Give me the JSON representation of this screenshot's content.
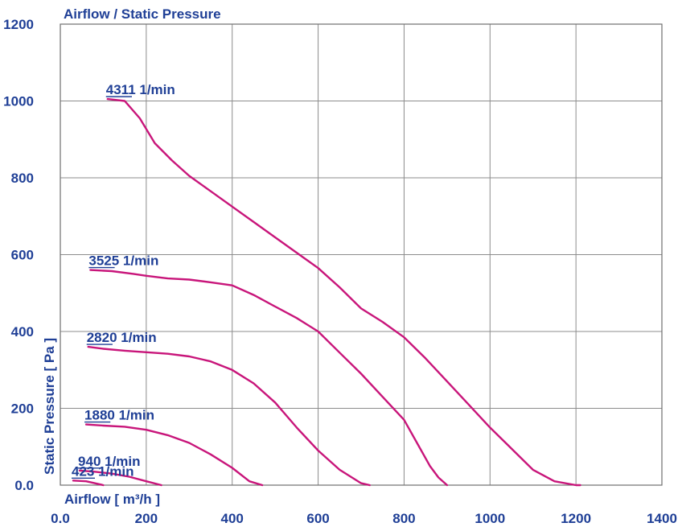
{
  "chart_data": {
    "type": "line",
    "title": "Airflow / Static Pressure",
    "xlabel": "Airflow [ m³/h ]",
    "ylabel": "Static Pressure [ Pa ]",
    "xlim": [
      0,
      1400
    ],
    "ylim": [
      0,
      1200
    ],
    "x_ticks": [
      "0.0",
      "200",
      "400",
      "600",
      "800",
      "1000",
      "1200",
      "1400"
    ],
    "y_ticks": [
      "0.0",
      "200",
      "400",
      "600",
      "800",
      "1000",
      "1200"
    ],
    "grid": true,
    "colors": {
      "curve": "#c8157a",
      "text": "#1f3f96",
      "grid": "#8c8c8c"
    },
    "series": [
      {
        "name": "4311 1/min",
        "x": [
          110,
          150,
          185,
          220,
          260,
          300,
          350,
          400,
          450,
          500,
          550,
          600,
          650,
          700,
          750,
          800,
          850,
          900,
          950,
          1000,
          1050,
          1100,
          1150,
          1200,
          1210
        ],
        "y": [
          1005,
          1000,
          955,
          890,
          845,
          805,
          765,
          725,
          685,
          645,
          605,
          565,
          515,
          460,
          425,
          385,
          330,
          270,
          210,
          150,
          95,
          40,
          10,
          0,
          0
        ]
      },
      {
        "name": "3525 1/min",
        "x": [
          70,
          120,
          170,
          200,
          250,
          300,
          350,
          400,
          450,
          500,
          550,
          600,
          650,
          700,
          750,
          800,
          830,
          860,
          880,
          900
        ],
        "y": [
          560,
          557,
          550,
          545,
          538,
          535,
          528,
          520,
          495,
          465,
          435,
          400,
          345,
          290,
          230,
          170,
          110,
          50,
          20,
          0
        ]
      },
      {
        "name": "2820 1/min",
        "x": [
          65,
          100,
          150,
          200,
          250,
          300,
          350,
          400,
          450,
          500,
          550,
          600,
          650,
          700,
          720
        ],
        "y": [
          360,
          355,
          350,
          346,
          342,
          335,
          322,
          300,
          265,
          215,
          150,
          90,
          40,
          5,
          0
        ]
      },
      {
        "name": "1880 1/min",
        "x": [
          60,
          100,
          150,
          200,
          250,
          300,
          350,
          400,
          440,
          470
        ],
        "y": [
          158,
          155,
          152,
          144,
          130,
          110,
          80,
          45,
          10,
          0
        ]
      },
      {
        "name": "940 1/min",
        "x": [
          45,
          80,
          120,
          160,
          200,
          235
        ],
        "y": [
          38,
          35,
          30,
          22,
          10,
          0
        ]
      },
      {
        "name": "423 1/min",
        "x": [
          30,
          60,
          80,
          100
        ],
        "y": [
          12,
          10,
          5,
          0
        ]
      }
    ],
    "label_positions_note": ""
  }
}
